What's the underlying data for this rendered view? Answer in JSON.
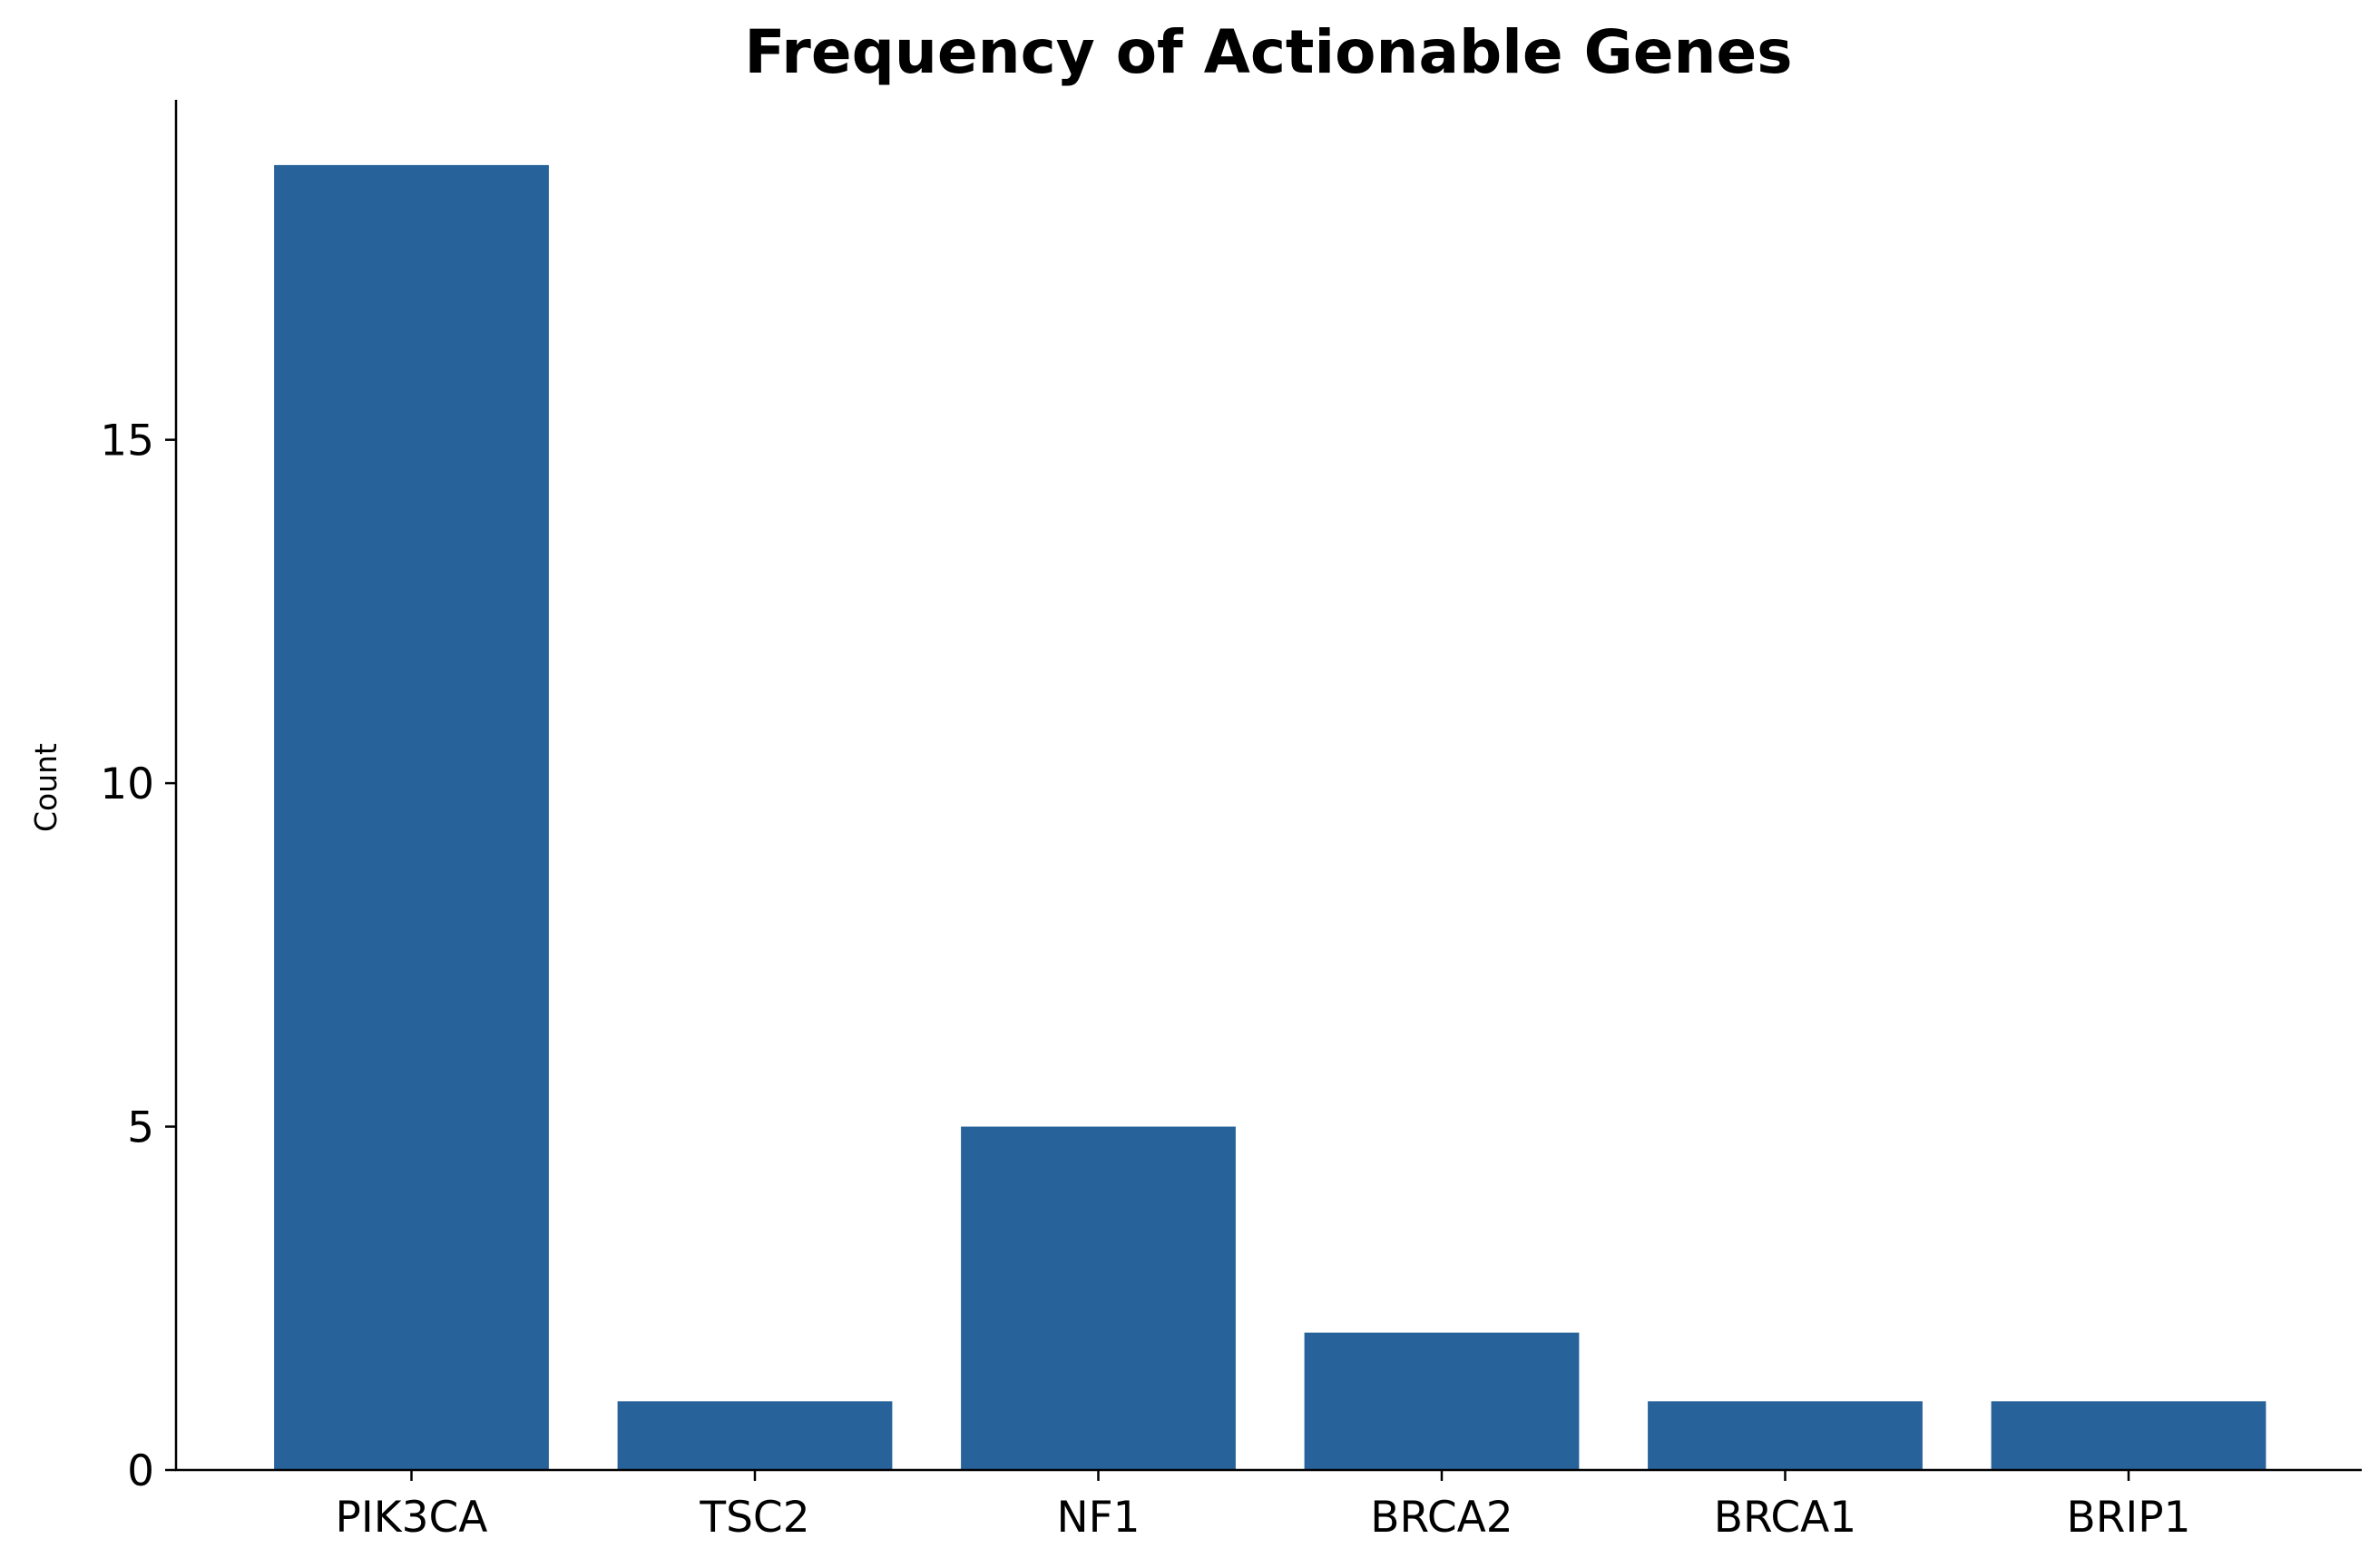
{
  "chart_data": {
    "type": "bar",
    "title": "Frequency of Actionable Genes",
    "xlabel": "",
    "ylabel": "Count",
    "categories": [
      "PIK3CA",
      "TSC2",
      "NF1",
      "BRCA2",
      "BRCA1",
      "BRIP1"
    ],
    "values": [
      19,
      1,
      5,
      2,
      1,
      1
    ],
    "yticks": [
      0,
      5,
      10,
      15
    ],
    "ylim": [
      0,
      19.95
    ],
    "bar_color": "#27629a",
    "grid": false,
    "legend": "none"
  }
}
